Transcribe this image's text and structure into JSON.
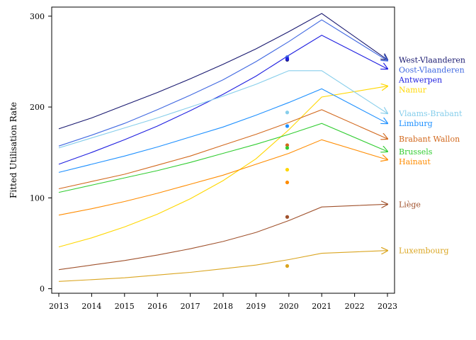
{
  "chart_data": {
    "type": "line",
    "title": "",
    "xlabel": "",
    "ylabel": "Fitted Utilisation Rate",
    "xlim": [
      2013,
      2023
    ],
    "ylim": [
      -5,
      310
    ],
    "x_ticks": [
      2013,
      2014,
      2015,
      2016,
      2017,
      2018,
      2019,
      2020,
      2021,
      2022,
      2023
    ],
    "y_ticks": [
      0,
      100,
      200,
      300
    ],
    "grid": false,
    "legend": "labels at line ends (right)",
    "x": [
      2013,
      2014,
      2015,
      2016,
      2017,
      2018,
      2019,
      2020,
      2021,
      2023
    ],
    "series": [
      {
        "name": "West-Vlaanderen",
        "color": "#191970",
        "values": [
          176,
          188,
          202,
          216,
          231,
          247,
          264,
          283,
          303,
          252
        ],
        "observed_2020": 252
      },
      {
        "name": "Oost-Vlaanderen",
        "color": "#4169e1",
        "values": [
          157,
          169,
          182,
          197,
          213,
          230,
          250,
          272,
          296,
          251
        ],
        "observed_2020": 255
      },
      {
        "name": "Antwerpen",
        "color": "#1f1fe0",
        "values": [
          137,
          150,
          164,
          179,
          196,
          214,
          234,
          257,
          279,
          242
        ],
        "observed_2020": 253
      },
      {
        "name": "Namur",
        "color": "#ffd700",
        "values": [
          46,
          56,
          68,
          82,
          99,
          119,
          143,
          175,
          211,
          223
        ],
        "observed_2020": 131
      },
      {
        "name": "Vlaams-Brabant",
        "color": "#87ceeb",
        "values": [
          155,
          166,
          177,
          188,
          200,
          212,
          225,
          240,
          240,
          193
        ],
        "observed_2020": 194
      },
      {
        "name": "Limburg",
        "color": "#1e90ff",
        "values": [
          128,
          137,
          146,
          156,
          167,
          178,
          191,
          205,
          220,
          182
        ],
        "observed_2020": 179
      },
      {
        "name": "Brabant Wallon",
        "color": "#d2691e",
        "values": [
          110,
          118,
          126,
          136,
          146,
          158,
          170,
          183,
          197,
          165
        ],
        "observed_2020": 158
      },
      {
        "name": "Brussels",
        "color": "#32cd32",
        "values": [
          106,
          114,
          122,
          130,
          139,
          149,
          159,
          170,
          182,
          151
        ],
        "observed_2020": 155
      },
      {
        "name": "Hainaut",
        "color": "#ff8c00",
        "values": [
          81,
          88,
          96,
          105,
          115,
          125,
          137,
          149,
          164,
          142
        ],
        "observed_2020": 117
      },
      {
        "name": "Liège",
        "color": "#a0522d",
        "values": [
          21,
          26,
          31,
          37,
          44,
          52,
          62,
          75,
          90,
          93
        ],
        "observed_2020": 79
      },
      {
        "name": "Luxembourg",
        "color": "#daa520",
        "values": [
          8,
          10,
          12,
          15,
          18,
          22,
          26,
          32,
          39,
          42
        ],
        "observed_2020": 25
      }
    ]
  }
}
